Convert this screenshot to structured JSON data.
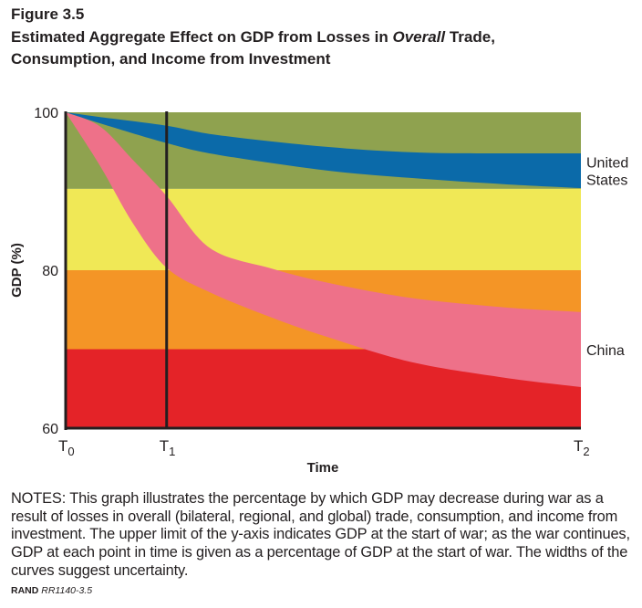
{
  "figure": {
    "label": "Figure 3.5",
    "title_part1": "Estimated Aggregate Effect on GDP from Losses in ",
    "title_italic": "Overall",
    "title_part2": " Trade,",
    "title_line2": "Consumption, and Income from Investment"
  },
  "notes": "NOTES: This graph illustrates the percentage by which GDP may decrease during war as a result of losses in overall (bilateral, regional, and global) trade, consumption, and income from investment. The upper limit of the y-axis indicates GDP at the start of war; as the war continues, GDP at each point in time is given as a percentage of GDP at the start of war. The widths of the curves suggest uncertainty.",
  "source": {
    "org": "RAND",
    "id": "RR1140-3.5"
  },
  "colors": {
    "green": "#8fa24f",
    "yellow": "#f0e856",
    "orange": "#f49526",
    "red": "#e42328",
    "us": "#0b6aa9",
    "china": "#ee7189",
    "axis": "#231f20"
  },
  "chart_data": {
    "type": "area",
    "title": "Estimated Aggregate Effect on GDP from Losses in Overall Trade, Consumption, and Income from Investment",
    "xlabel": "Time",
    "ylabel": "GDP (%)",
    "ylim": [
      60,
      100
    ],
    "xlim": [
      0,
      1
    ],
    "yticks": [
      100,
      80,
      60
    ],
    "xticks": [
      {
        "value": 0,
        "label": "T",
        "sub": "0"
      },
      {
        "value": 0.196,
        "label": "T",
        "sub": "1"
      },
      {
        "value": 1,
        "label": "T",
        "sub": "2"
      }
    ],
    "vertical_marker": {
      "x": 0.196,
      "label": "T1"
    },
    "background_bands": [
      {
        "from": 90.3,
        "to": 100,
        "color": "green"
      },
      {
        "from": 80,
        "to": 90.3,
        "color": "yellow"
      },
      {
        "from": 70,
        "to": 80,
        "color": "orange"
      },
      {
        "from": 60,
        "to": 70,
        "color": "red"
      }
    ],
    "series": [
      {
        "name": "United States",
        "label_lines": [
          "United",
          "States"
        ],
        "color": "us",
        "x": [
          0,
          0.067,
          0.196,
          0.297,
          0.51,
          0.687,
          0.85,
          1.0
        ],
        "upper": [
          100,
          99.4,
          98.3,
          97.1,
          95.6,
          94.9,
          94.8,
          94.8
        ],
        "lower": [
          100,
          98.6,
          96.1,
          94.6,
          92.6,
          91.6,
          90.9,
          90.4
        ]
      },
      {
        "name": "China",
        "label_lines": [
          "China"
        ],
        "color": "china",
        "x": [
          0,
          0.067,
          0.13,
          0.196,
          0.28,
          0.4,
          0.51,
          0.669,
          0.85,
          1.0
        ],
        "upper": [
          100,
          98.2,
          94.0,
          89.4,
          82.8,
          80.2,
          78.4,
          76.5,
          75.3,
          74.7
        ],
        "lower": [
          100,
          93.2,
          86.0,
          80.3,
          77.2,
          74.0,
          71.5,
          68.4,
          66.4,
          65.2
        ]
      }
    ],
    "grid": false,
    "legend": "inline-right"
  }
}
